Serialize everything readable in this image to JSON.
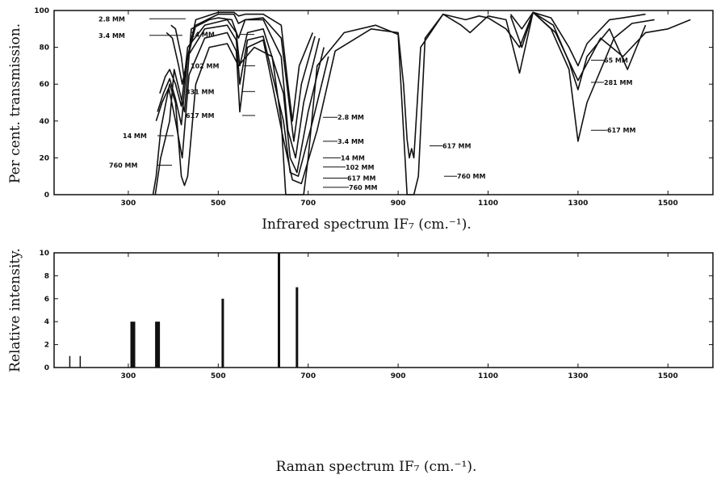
{
  "chart_data": [
    {
      "type": "line",
      "xlabel": "Infrared spectrum IF₇ (cm.⁻¹).",
      "ylabel": "Per cent. transmission.",
      "xlim": [
        135,
        1600
      ],
      "ylim": [
        0,
        100
      ],
      "xticks": [
        300,
        500,
        700,
        900,
        1100,
        1300,
        1500
      ],
      "yticks": [
        0,
        20,
        40,
        60,
        80,
        100
      ],
      "grid": false,
      "series": [
        {
          "name": "2.8 MM",
          "x": [
            395,
            405,
            418,
            425,
            432,
            450,
            500,
            535,
            545,
            560,
            600,
            640,
            655,
            665,
            680,
            710
          ],
          "y": [
            92,
            90,
            75,
            61,
            75,
            95,
            99,
            99,
            97,
            98,
            98,
            92,
            60,
            40,
            70,
            88
          ]
        },
        {
          "name": "3.4 MM",
          "x": [
            385,
            398,
            412,
            420,
            430,
            450,
            500,
            535,
            545,
            560,
            600,
            640,
            660,
            668,
            685,
            715
          ],
          "y": [
            88,
            85,
            70,
            60,
            72,
            92,
            98,
            98,
            93,
            95,
            96,
            85,
            45,
            29,
            60,
            86
          ]
        },
        {
          "name": "14 MM",
          "x": [
            360,
            372,
            383,
            392,
            402,
            415,
            425,
            440,
            480,
            500,
            530,
            545,
            560,
            600,
            640,
            655,
            672,
            690,
            725
          ],
          "y": [
            0,
            20,
            31,
            40,
            68,
            55,
            45,
            90,
            95,
            96,
            95,
            85,
            95,
            95,
            75,
            35,
            20,
            50,
            85
          ]
        },
        {
          "name": "102 MM",
          "x": [
            370,
            382,
            392,
            405,
            418,
            432,
            470,
            520,
            540,
            548,
            565,
            600,
            645,
            660,
            675,
            700,
            735
          ],
          "y": [
            55,
            64,
            68,
            60,
            48,
            80,
            92,
            95,
            88,
            70,
            88,
            90,
            55,
            20,
            12,
            45,
            80
          ]
        },
        {
          "name": "331 MM",
          "x": [
            365,
            378,
            392,
            405,
            418,
            432,
            470,
            520,
            540,
            548,
            565,
            600,
            645,
            660,
            678,
            710,
            745
          ],
          "y": [
            45,
            55,
            63,
            52,
            38,
            75,
            90,
            92,
            84,
            60,
            84,
            86,
            40,
            12,
            10,
            40,
            75
          ]
        },
        {
          "name": "617 MM",
          "x": [
            362,
            375,
            390,
            405,
            420,
            435,
            470,
            520,
            540,
            548,
            565,
            600,
            645,
            665,
            685,
            720,
            760,
            840,
            900,
            912,
            920,
            925,
            930,
            935,
            950,
            1000,
            1040,
            1060,
            1100,
            1140,
            1170,
            1200,
            1240,
            1280,
            1300,
            1320,
            1380,
            1420,
            1470
          ],
          "y": [
            40,
            50,
            58,
            40,
            20,
            65,
            85,
            88,
            78,
            45,
            80,
            84,
            30,
            8,
            6,
            35,
            78,
            90,
            88,
            60,
            30,
            20,
            25,
            20,
            80,
            98,
            92,
            88,
            97,
            95,
            66,
            99,
            90,
            68,
            29,
            50,
            85,
            93,
            95
          ]
        },
        {
          "name": "760 MM",
          "x": [
            355,
            362,
            372,
            382,
            392,
            405,
            418,
            425,
            432,
            450,
            480,
            520,
            545,
            580,
            620,
            640,
            650,
            690,
            700,
            720,
            780,
            850,
            900,
            920,
            925,
            935,
            945,
            960,
            1000,
            1050,
            1080,
            1100,
            1140,
            1170,
            1200,
            1250,
            1300,
            1350,
            1400,
            1450,
            1500,
            1550
          ],
          "y": [
            0,
            10,
            35,
            48,
            60,
            50,
            10,
            5,
            10,
            60,
            80,
            82,
            70,
            80,
            75,
            40,
            0,
            0,
            20,
            70,
            88,
            92,
            87,
            0,
            0,
            0,
            10,
            85,
            98,
            95,
            97,
            96,
            90,
            80,
            99,
            88,
            62,
            85,
            75,
            88,
            90,
            95
          ]
        },
        {
          "name": "65 MM",
          "x": [
            1150,
            1175,
            1200,
            1240,
            1280,
            1300,
            1320,
            1370,
            1400,
            1450
          ],
          "y": [
            98,
            90,
            99,
            96,
            80,
            70,
            82,
            95,
            96,
            98
          ]
        },
        {
          "name": "281 MM",
          "x": [
            1150,
            1175,
            1200,
            1245,
            1280,
            1300,
            1320,
            1370,
            1410,
            1450
          ],
          "y": [
            97,
            80,
            99,
            92,
            72,
            57,
            75,
            90,
            68,
            92
          ]
        }
      ],
      "annotations": [
        "2.8 MM",
        "3.4 MM",
        "14 MM",
        "760 MM",
        "14 MM",
        "102 MM",
        "331 MM",
        "617 MM",
        "2.8 MM",
        "3.4 MM",
        "14 MM",
        "102 MM",
        "617 MM",
        "760 MM",
        "617 MM",
        "760 MM",
        "65 MM",
        "281 MM",
        "617 MM"
      ]
    },
    {
      "type": "bar",
      "xlabel": "Raman spectrum IF₇ (cm.⁻¹).",
      "ylabel": "Relative intensity.",
      "xlim": [
        135,
        1600
      ],
      "ylim": [
        0,
        10
      ],
      "xticks": [
        300,
        500,
        700,
        900,
        1100,
        1300,
        1500
      ],
      "yticks": [
        0,
        2,
        4,
        6,
        8,
        10
      ],
      "grid": false,
      "x": [
        170,
        193,
        310,
        365,
        510,
        635,
        675
      ],
      "values": [
        1,
        1,
        4,
        4,
        6,
        10,
        7
      ]
    }
  ]
}
